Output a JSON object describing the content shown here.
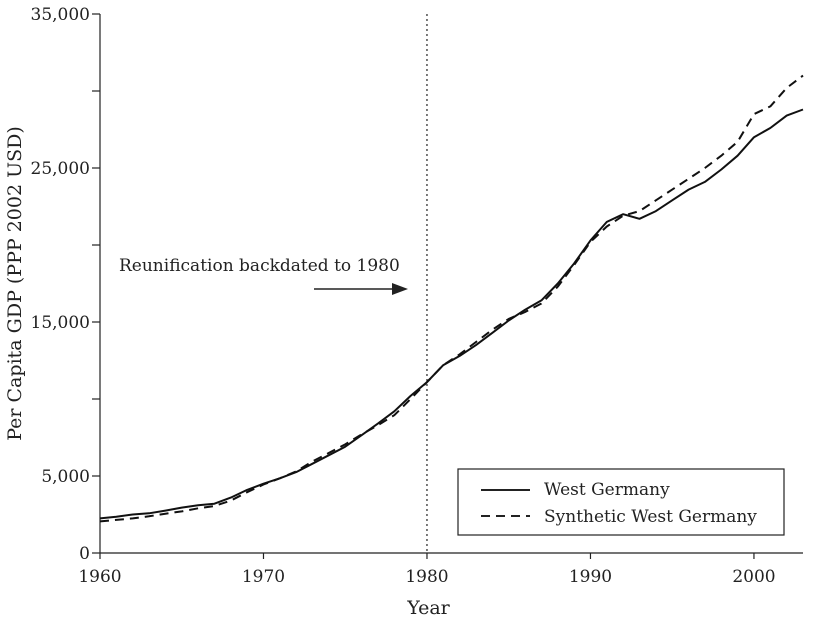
{
  "chart_data": {
    "type": "line",
    "title": "",
    "xlabel": "Year",
    "ylabel": "Per Capita GDP (PPP 2002 USD)",
    "xlim": [
      1960,
      2003
    ],
    "ylim": [
      0,
      35000
    ],
    "x_ticks": [
      1960,
      1970,
      1980,
      1990,
      2000
    ],
    "x_tick_labels": [
      "1960",
      "1970",
      "1980",
      "1990",
      "2000"
    ],
    "y_ticks": [
      0,
      5000,
      10000,
      15000,
      20000,
      25000,
      30000,
      35000
    ],
    "y_tick_labels": [
      "0",
      "5,000",
      "",
      "15,000",
      "",
      "25,000",
      "",
      "35,000"
    ],
    "grid": false,
    "legend_position": "bottom-right",
    "series": [
      {
        "name": "West Germany",
        "style": "solid",
        "x": [
          1960,
          1961,
          1962,
          1963,
          1964,
          1965,
          1966,
          1967,
          1968,
          1969,
          1970,
          1971,
          1972,
          1973,
          1974,
          1975,
          1976,
          1977,
          1978,
          1979,
          1980,
          1981,
          1982,
          1983,
          1984,
          1985,
          1986,
          1987,
          1988,
          1989,
          1990,
          1991,
          1992,
          1993,
          1994,
          1995,
          1996,
          1997,
          1998,
          1999,
          2000,
          2001,
          2002,
          2003
        ],
        "y": [
          2250,
          2350,
          2500,
          2580,
          2750,
          2950,
          3100,
          3200,
          3600,
          4100,
          4500,
          4850,
          5250,
          5800,
          6350,
          6900,
          7650,
          8400,
          9200,
          10200,
          11100,
          12200,
          12800,
          13500,
          14300,
          15100,
          15800,
          16400,
          17500,
          18800,
          20300,
          21500,
          22000,
          21700,
          22200,
          22900,
          23600,
          24100,
          24900,
          25800,
          27000,
          27600,
          28400,
          28800
        ]
      },
      {
        "name": "Synthetic West Germany",
        "style": "dashed",
        "x": [
          1960,
          1961,
          1962,
          1963,
          1964,
          1965,
          1966,
          1967,
          1968,
          1969,
          1970,
          1971,
          1972,
          1973,
          1974,
          1975,
          1976,
          1977,
          1978,
          1979,
          1980,
          1981,
          1982,
          1983,
          1984,
          1985,
          1986,
          1987,
          1988,
          1989,
          1990,
          1991,
          1992,
          1993,
          1994,
          1995,
          1996,
          1997,
          1998,
          1999,
          2000,
          2001,
          2002,
          2003
        ],
        "y": [
          2050,
          2150,
          2250,
          2380,
          2550,
          2700,
          2900,
          3050,
          3400,
          3950,
          4450,
          4850,
          5300,
          5950,
          6500,
          7050,
          7700,
          8300,
          8950,
          10000,
          11100,
          12200,
          12900,
          13700,
          14500,
          15200,
          15650,
          16200,
          17300,
          18700,
          20200,
          21200,
          21900,
          22200,
          22900,
          23600,
          24300,
          25000,
          25800,
          26700,
          28500,
          29000,
          30200,
          31000
        ]
      }
    ],
    "annotations": [
      {
        "text": "Reunification backdated to 1980",
        "x": 1980,
        "line": "vertical-dotted",
        "arrow": "right"
      }
    ]
  }
}
